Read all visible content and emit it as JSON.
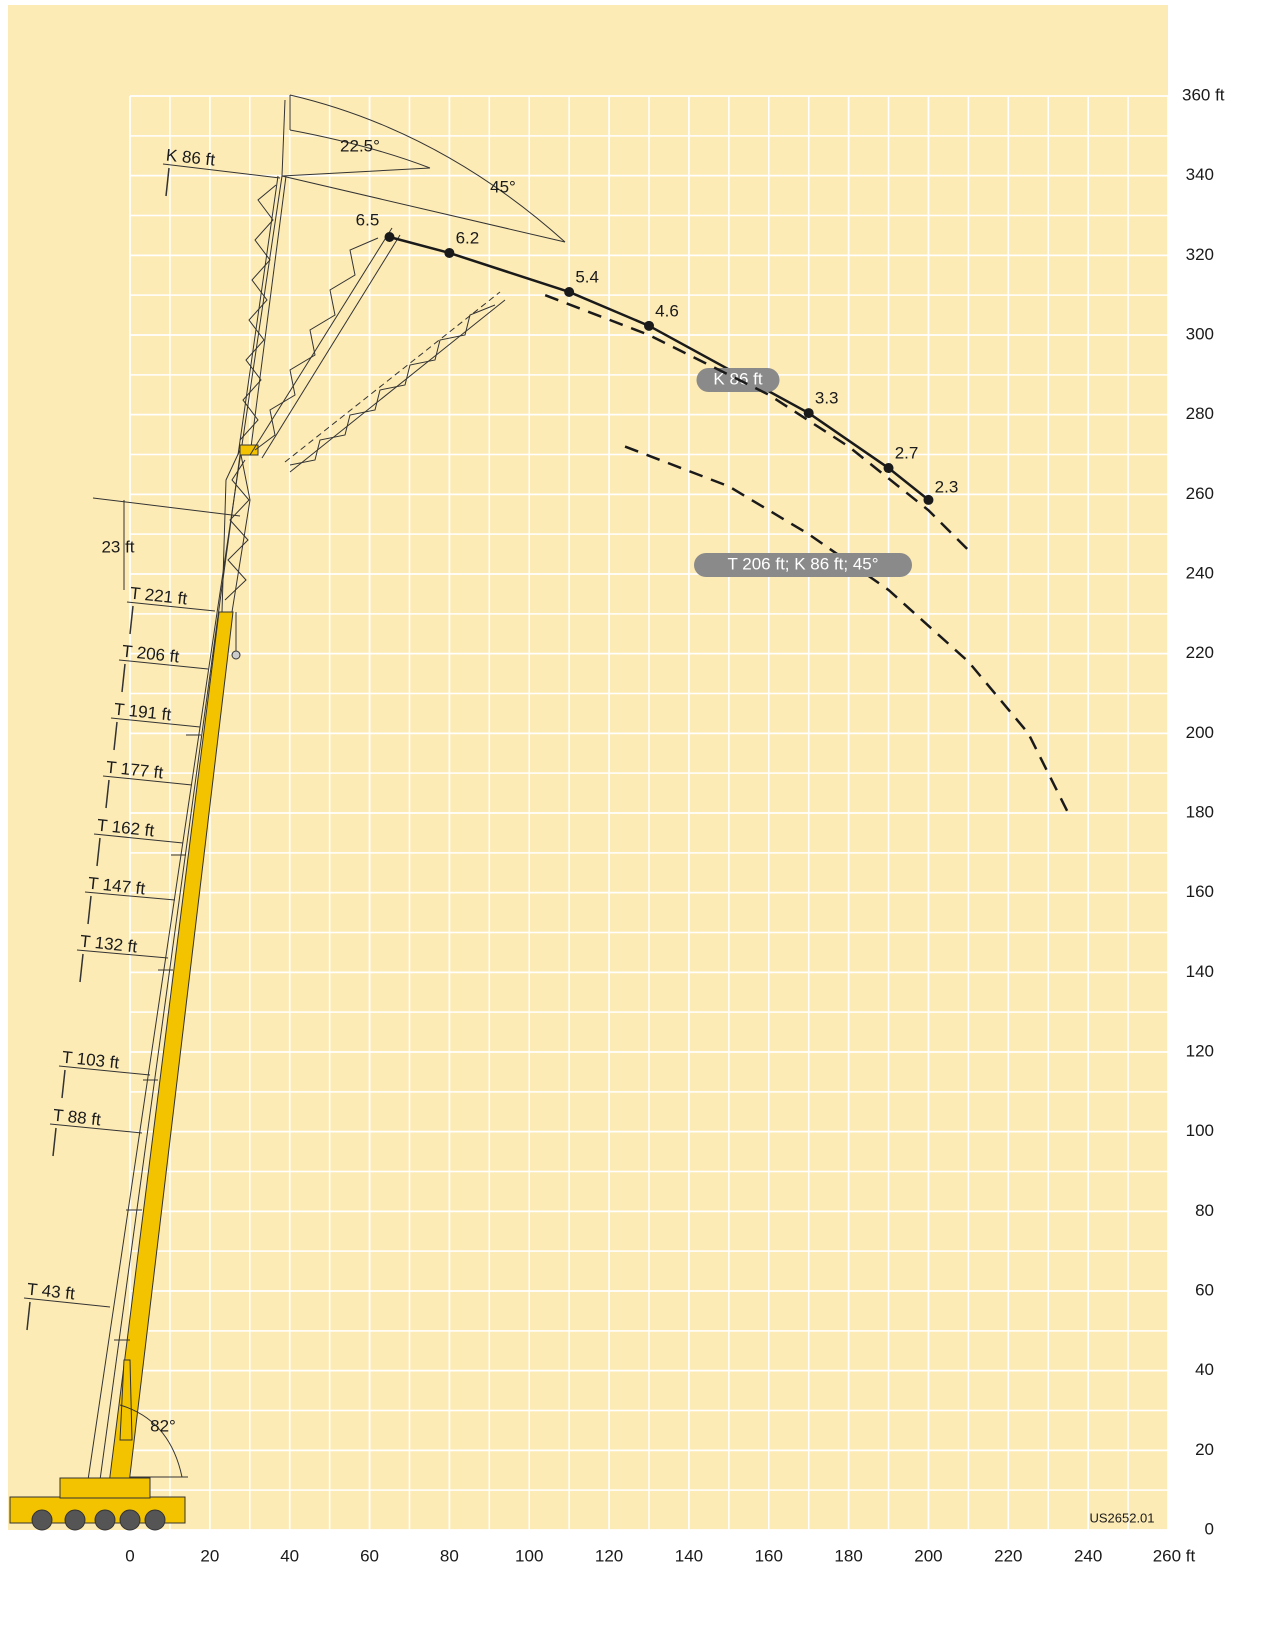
{
  "chart_data": {
    "type": "line",
    "xlim": [
      0,
      260
    ],
    "ylim": [
      0,
      360
    ],
    "xticks": [
      0,
      20,
      40,
      60,
      80,
      100,
      120,
      140,
      160,
      180,
      200,
      220,
      240,
      {
        "value": 260,
        "label": "260 ft"
      }
    ],
    "yticks": [
      0,
      20,
      40,
      60,
      80,
      100,
      120,
      140,
      160,
      180,
      200,
      220,
      240,
      260,
      280,
      300,
      320,
      340,
      {
        "value": 360,
        "label": "360 ft"
      }
    ],
    "grid": true,
    "grid_spacing": 10,
    "series": [
      {
        "name": "K 86 ft",
        "color": "#1a1a1a",
        "dash": false,
        "x": [
          65,
          80,
          110,
          130,
          170,
          190,
          200
        ],
        "values": [
          324.6,
          320.6,
          310.8,
          302.3,
          280.4,
          266.6,
          258.6
        ],
        "point_labels": [
          6.5,
          6.2,
          5.4,
          4.6,
          3.3,
          2.7,
          2.3
        ]
      },
      {
        "color": "#1a1a1a",
        "dash": true,
        "x": [
          104,
          130,
          160,
          180,
          200,
          210
        ],
        "values": [
          310,
          300,
          285,
          272,
          256,
          246
        ]
      },
      {
        "name": "T 206 ft; K 86 ft; 45°",
        "color": "#1a1a1a",
        "dash": true,
        "x": [
          124,
          150,
          170,
          190,
          210,
          225,
          235
        ],
        "values": [
          272,
          262,
          250,
          236,
          218,
          200,
          180
        ]
      }
    ],
    "boom_labels": [
      "T 43 ft",
      "T 88 ft",
      "T 103 ft",
      "T 132 ft",
      "T 147 ft",
      "T 162 ft",
      "T 177 ft",
      "T 191 ft",
      "T 206 ft",
      "T 221 ft",
      "K 86 ft"
    ],
    "annotations": [
      "22.5°",
      "45°",
      "82°",
      "23 ft"
    ],
    "drawing_code": "US2652.01"
  }
}
